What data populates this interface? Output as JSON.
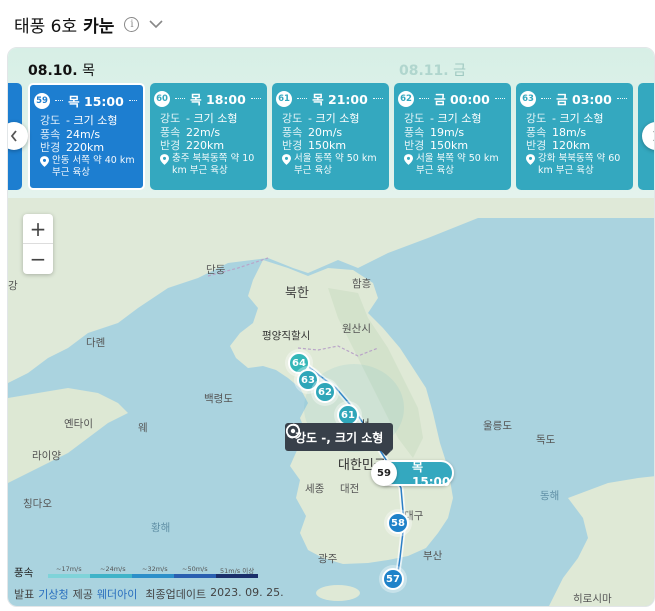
{
  "header": {
    "prefix": "태풍 6호",
    "name": "카눈"
  },
  "dates": [
    {
      "date": "08.10.",
      "day": "목"
    },
    {
      "date": "08.11.",
      "day": "금"
    }
  ],
  "forecasts": [
    {
      "num": "59",
      "time": "목 15:00",
      "intensity_label": "강도",
      "intensity": "- 크기 소형",
      "wind_label": "풍속",
      "wind": "24m/s",
      "radius_label": "반경",
      "radius": "220km",
      "location": "안동 서쪽 약 40 km 부근 육상"
    },
    {
      "num": "60",
      "time": "목 18:00",
      "intensity_label": "강도",
      "intensity": "- 크기 소형",
      "wind_label": "풍속",
      "wind": "22m/s",
      "radius_label": "반경",
      "radius": "220km",
      "location": "충주 북북동쪽 약 10 km 부근 육상"
    },
    {
      "num": "61",
      "time": "목 21:00",
      "intensity_label": "강도",
      "intensity": "- 크기 소형",
      "wind_label": "풍속",
      "wind": "20m/s",
      "radius_label": "반경",
      "radius": "150km",
      "location": "서울 동쪽 약 50 km 부근 육상"
    },
    {
      "num": "62",
      "time": "금 00:00",
      "intensity_label": "강도",
      "intensity": "- 크기 소형",
      "wind_label": "풍속",
      "wind": "19m/s",
      "radius_label": "반경",
      "radius": "150km",
      "location": "서울 북쪽 약 50 km 부근 육상"
    },
    {
      "num": "63",
      "time": "금 03:00",
      "intensity_label": "강도",
      "intensity": "- 크기 소형",
      "wind_label": "풍속",
      "wind": "18m/s",
      "radius_label": "반경",
      "radius": "120km",
      "location": "강화 북북동쪽 약 60 km 부근 육상"
    }
  ],
  "map": {
    "labels": {
      "dandong": "단둥",
      "bukhan": "북한",
      "hamheung": "함흥",
      "darhe": "다롄",
      "pyongyang": "평양직할시",
      "wonsan": "원산시",
      "baengnyeong": "백령도",
      "yeontai": "옌타이",
      "laiyang": "라이양",
      "weihai": "웨",
      "ulleung": "울릉도",
      "dokdo": "독도",
      "seoul": "서",
      "daehanminguk": "대한민국",
      "sejong": "세종",
      "daejeon": "대전",
      "daegu": "대구",
      "busan": "부산",
      "gwangju": "광주",
      "qingdao": "칭다오",
      "hwanghae": "황해",
      "donghae": "동해",
      "hiroshima": "히로시마",
      "ganghwa": "강"
    },
    "track_markers": [
      "64",
      "63",
      "62",
      "61",
      "58",
      "57"
    ],
    "tooltip": "강도 -, 크기 소형",
    "current": {
      "num": "59",
      "time": "목 15:00"
    }
  },
  "legend": {
    "title": "풍속",
    "items": [
      {
        "label": "~17m/s",
        "color": "#7fd3d9"
      },
      {
        "label": "~24m/s",
        "color": "#3fb3c8"
      },
      {
        "label": "~32m/s",
        "color": "#2c8fc9"
      },
      {
        "label": "~50m/s",
        "color": "#2a5fb0"
      },
      {
        "label": "51m/s 이상",
        "color": "#1b2f6b"
      }
    ]
  },
  "footer": {
    "prefix": "발표",
    "agency": "기상청",
    "provided": "제공",
    "radar": "웨더아이",
    "updated_label": "최종업데이트",
    "updated": "2023. 09. 25."
  }
}
